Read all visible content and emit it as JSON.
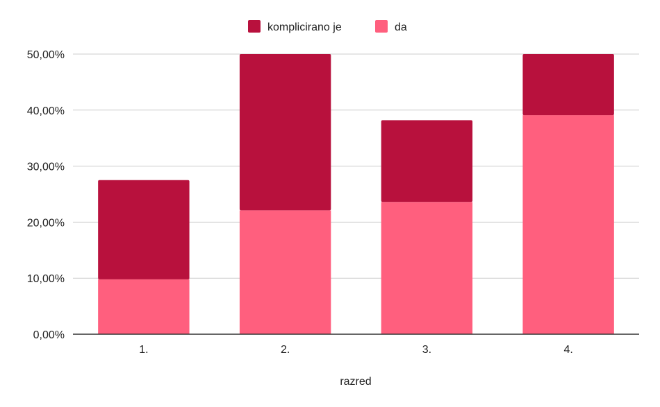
{
  "chart_data": {
    "type": "bar",
    "stacked": true,
    "categories": [
      "1.",
      "2.",
      "3.",
      "4."
    ],
    "series": [
      {
        "name": "da",
        "values": [
          9.8,
          22.1,
          23.6,
          39.1
        ],
        "color": "#ff5f7e"
      },
      {
        "name": "komplicirano je",
        "values": [
          17.7,
          27.9,
          14.6,
          10.9
        ],
        "color": "#b8113d"
      }
    ],
    "legend_order": [
      "komplicirano je",
      "da"
    ],
    "legend_position": "top-center",
    "y_ticks": [
      "0,00%",
      "10,00%",
      "20,00%",
      "30,00%",
      "40,00%",
      "50,00%"
    ],
    "ylim": [
      0,
      50
    ],
    "xlabel": "razred",
    "ylabel": "",
    "grid": true,
    "gridline_color": "#cccccc",
    "axis_color": "#333333"
  }
}
